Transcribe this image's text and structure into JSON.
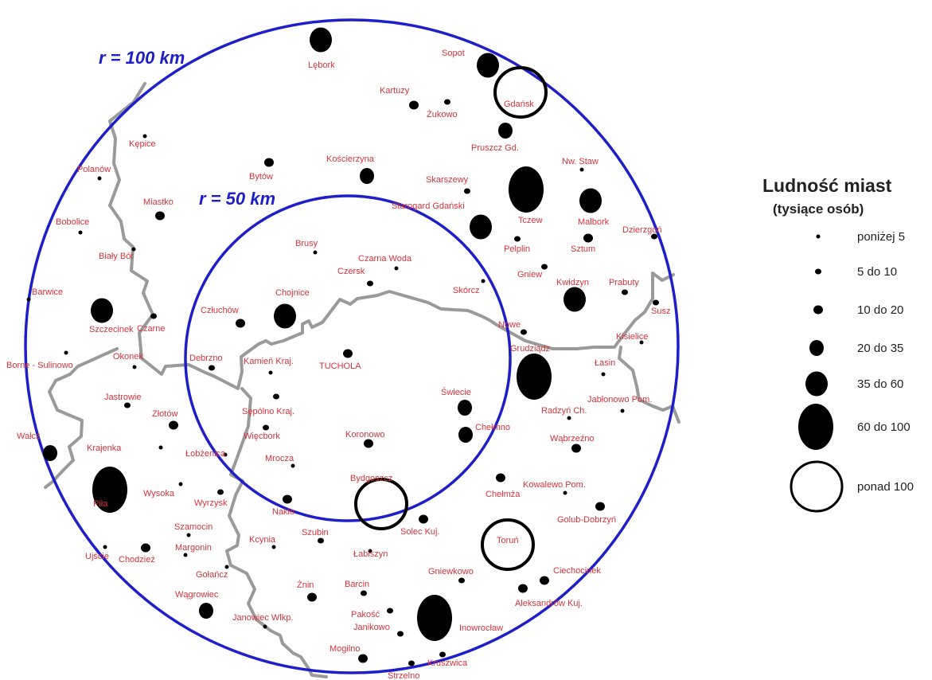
{
  "rings": {
    "inner_label": "r = 50 km",
    "outer_label": "r = 100 km",
    "color": "#1f1fc9"
  },
  "colors": {
    "label": "#d8333a",
    "border": "#9a9a9a",
    "town": "#000000"
  },
  "legend": {
    "title": "Ludność miast",
    "subtitle": "(tysiące osób)",
    "classes": [
      "poniżej 5",
      "5 do 10",
      "10 do 20",
      "20 do 35",
      "35 do 60",
      "60 do 100",
      "ponad 100"
    ]
  },
  "towns": [
    {
      "name": "Lębork",
      "cls": 4
    },
    {
      "name": "Sopot",
      "cls": 4
    },
    {
      "name": "Gdańsk",
      "cls": 6
    },
    {
      "name": "Kartuzy",
      "cls": 2
    },
    {
      "name": "Żukowo",
      "cls": 1
    },
    {
      "name": "Pruszcz Gd.",
      "cls": 3
    },
    {
      "name": "Kępice",
      "cls": 0
    },
    {
      "name": "Polanów",
      "cls": 0
    },
    {
      "name": "Bytów",
      "cls": 2
    },
    {
      "name": "Kościerzyna",
      "cls": 3
    },
    {
      "name": "Nw. Staw",
      "cls": 0
    },
    {
      "name": "Skarszewy",
      "cls": 1
    },
    {
      "name": "Tczew",
      "cls": 5
    },
    {
      "name": "Malbork",
      "cls": 4
    },
    {
      "name": "Miastko",
      "cls": 2
    },
    {
      "name": "Starogard Gdański",
      "cls": 4
    },
    {
      "name": "Bobolice",
      "cls": 0
    },
    {
      "name": "Dzierzgoń",
      "cls": 1
    },
    {
      "name": "Sztum",
      "cls": 2
    },
    {
      "name": "Pelplin",
      "cls": 1
    },
    {
      "name": "Brusy",
      "cls": 0
    },
    {
      "name": "Biały Bór",
      "cls": 0
    },
    {
      "name": "Czarna Woda",
      "cls": 0
    },
    {
      "name": "Czersk",
      "cls": 1
    },
    {
      "name": "Gniew",
      "cls": 1
    },
    {
      "name": "Skórcz",
      "cls": 0
    },
    {
      "name": "Kwidzyn",
      "cls": 4
    },
    {
      "name": "Prabuty",
      "cls": 1
    },
    {
      "name": "Barwice",
      "cls": 0
    },
    {
      "name": "Susz",
      "cls": 1
    },
    {
      "name": "Chojnice",
      "cls": 4
    },
    {
      "name": "Szczecinek",
      "cls": 4
    },
    {
      "name": "Człuchów",
      "cls": 2
    },
    {
      "name": "Czarne",
      "cls": 1
    },
    {
      "name": "Nowe",
      "cls": 1
    },
    {
      "name": "Kisielice",
      "cls": 0
    },
    {
      "name": "Grudziądz",
      "cls": 5
    },
    {
      "name": "TUCHOLA",
      "cls": 2
    },
    {
      "name": "Borne - Sulinowo",
      "cls": 0
    },
    {
      "name": "Okonek",
      "cls": 0
    },
    {
      "name": "Debrzno",
      "cls": 1
    },
    {
      "name": "Kamień Kraj.",
      "cls": 0
    },
    {
      "name": "Łasin",
      "cls": 0
    },
    {
      "name": "Jastrowie",
      "cls": 1
    },
    {
      "name": "Sępólno Kraj.",
      "cls": 1
    },
    {
      "name": "Świecie",
      "cls": 3
    },
    {
      "name": "Jabłonowo Pom.",
      "cls": 0
    },
    {
      "name": "Radzyń Ch.",
      "cls": 0
    },
    {
      "name": "Złotów",
      "cls": 2
    },
    {
      "name": "Chełmno",
      "cls": 3
    },
    {
      "name": "Więcbork",
      "cls": 1
    },
    {
      "name": "Koronowo",
      "cls": 2
    },
    {
      "name": "Wałcz",
      "cls": 3
    },
    {
      "name": "Krajenka",
      "cls": 0
    },
    {
      "name": "Wąbrzeźno",
      "cls": 2
    },
    {
      "name": "Łobżenica",
      "cls": 0
    },
    {
      "name": "Mrocza",
      "cls": 0
    },
    {
      "name": "Piła",
      "cls": 5
    },
    {
      "name": "Bydgoszcz",
      "cls": 6
    },
    {
      "name": "Chełmża",
      "cls": 2
    },
    {
      "name": "Kowalewo Pom.",
      "cls": 0
    },
    {
      "name": "Wysoka",
      "cls": 0
    },
    {
      "name": "Wyrzysk",
      "cls": 1
    },
    {
      "name": "Nakło",
      "cls": 2
    },
    {
      "name": "Golub-Dobrzyń",
      "cls": 2
    },
    {
      "name": "Solec Kuj.",
      "cls": 2
    },
    {
      "name": "Szamocin",
      "cls": 0
    },
    {
      "name": "Ujście",
      "cls": 0
    },
    {
      "name": "Szubin",
      "cls": 1
    },
    {
      "name": "Kcynia",
      "cls": 0
    },
    {
      "name": "Toruń",
      "cls": 6
    },
    {
      "name": "Margonin",
      "cls": 0
    },
    {
      "name": "Chodzież",
      "cls": 2
    },
    {
      "name": "Łabiszyn",
      "cls": 0
    },
    {
      "name": "Gołańcz",
      "cls": 0
    },
    {
      "name": "Gniewkowo",
      "cls": 1
    },
    {
      "name": "Ciechocinek",
      "cls": 2
    },
    {
      "name": "Żnin",
      "cls": 2
    },
    {
      "name": "Barcin",
      "cls": 1
    },
    {
      "name": "Aleksandrów Kuj.",
      "cls": 2
    },
    {
      "name": "Wągrowiec",
      "cls": 3
    },
    {
      "name": "Pakość",
      "cls": 1
    },
    {
      "name": "Janikowo",
      "cls": 1
    },
    {
      "name": "Inowrocław",
      "cls": 5
    },
    {
      "name": "Janowiec Wlkp.",
      "cls": 0
    },
    {
      "name": "Mogilno",
      "cls": 2
    },
    {
      "name": "Kruszwica",
      "cls": 1
    },
    {
      "name": "Strzelno",
      "cls": 1
    }
  ]
}
